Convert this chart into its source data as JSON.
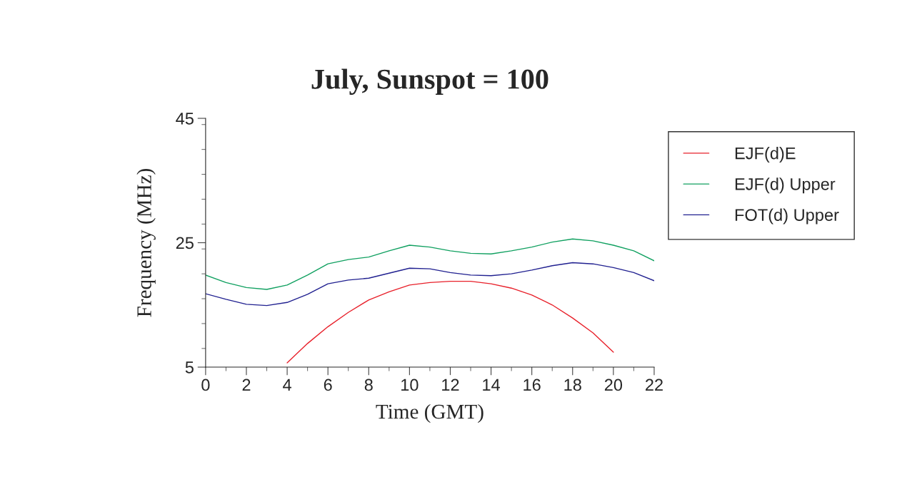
{
  "chart_data": {
    "type": "line",
    "title": "July, Sunspot = 100",
    "xlabel": "Time (GMT)",
    "ylabel": "Frequency (MHz)",
    "xlim": [
      0,
      22
    ],
    "xticks": [
      0,
      2,
      4,
      6,
      8,
      10,
      12,
      14,
      16,
      18,
      20,
      22
    ],
    "ylim": [
      5,
      45
    ],
    "yticks": [
      5,
      25,
      45
    ],
    "grid": false,
    "legend": "top right",
    "marker": "none",
    "line_style": "solid",
    "series": [
      {
        "name": "EJF(d)E",
        "color": "#e8202a",
        "x": [
          4,
          5,
          6,
          7,
          8,
          9,
          10,
          11,
          12,
          13,
          14,
          15,
          16,
          17,
          18,
          19,
          20
        ],
        "values": [
          5.7,
          8.8,
          11.5,
          13.8,
          15.8,
          17.1,
          18.2,
          18.6,
          18.8,
          18.8,
          18.4,
          17.7,
          16.6,
          15.0,
          12.9,
          10.5,
          7.4
        ]
      },
      {
        "name": "EJF(d) Upper",
        "color": "#10a060",
        "x": [
          0,
          1,
          2,
          3,
          4,
          5,
          6,
          7,
          8,
          9,
          10,
          11,
          12,
          13,
          14,
          15,
          16,
          17,
          18,
          19,
          20,
          21,
          22
        ],
        "values": [
          19.8,
          18.6,
          17.8,
          17.5,
          18.2,
          19.8,
          21.6,
          22.3,
          22.7,
          23.7,
          24.6,
          24.3,
          23.7,
          23.3,
          23.2,
          23.7,
          24.3,
          25.1,
          25.6,
          25.3,
          24.6,
          23.7,
          22.1
        ]
      },
      {
        "name": "FOT(d) Upper",
        "color": "#202090",
        "x": [
          0,
          1,
          2,
          3,
          4,
          5,
          6,
          7,
          8,
          9,
          10,
          11,
          12,
          13,
          14,
          15,
          16,
          17,
          18,
          19,
          20,
          21,
          22
        ],
        "values": [
          16.8,
          15.9,
          15.1,
          14.9,
          15.4,
          16.7,
          18.4,
          19.0,
          19.3,
          20.1,
          20.9,
          20.8,
          20.2,
          19.8,
          19.7,
          20.0,
          20.6,
          21.3,
          21.8,
          21.6,
          21.0,
          20.2,
          18.9
        ]
      }
    ]
  }
}
